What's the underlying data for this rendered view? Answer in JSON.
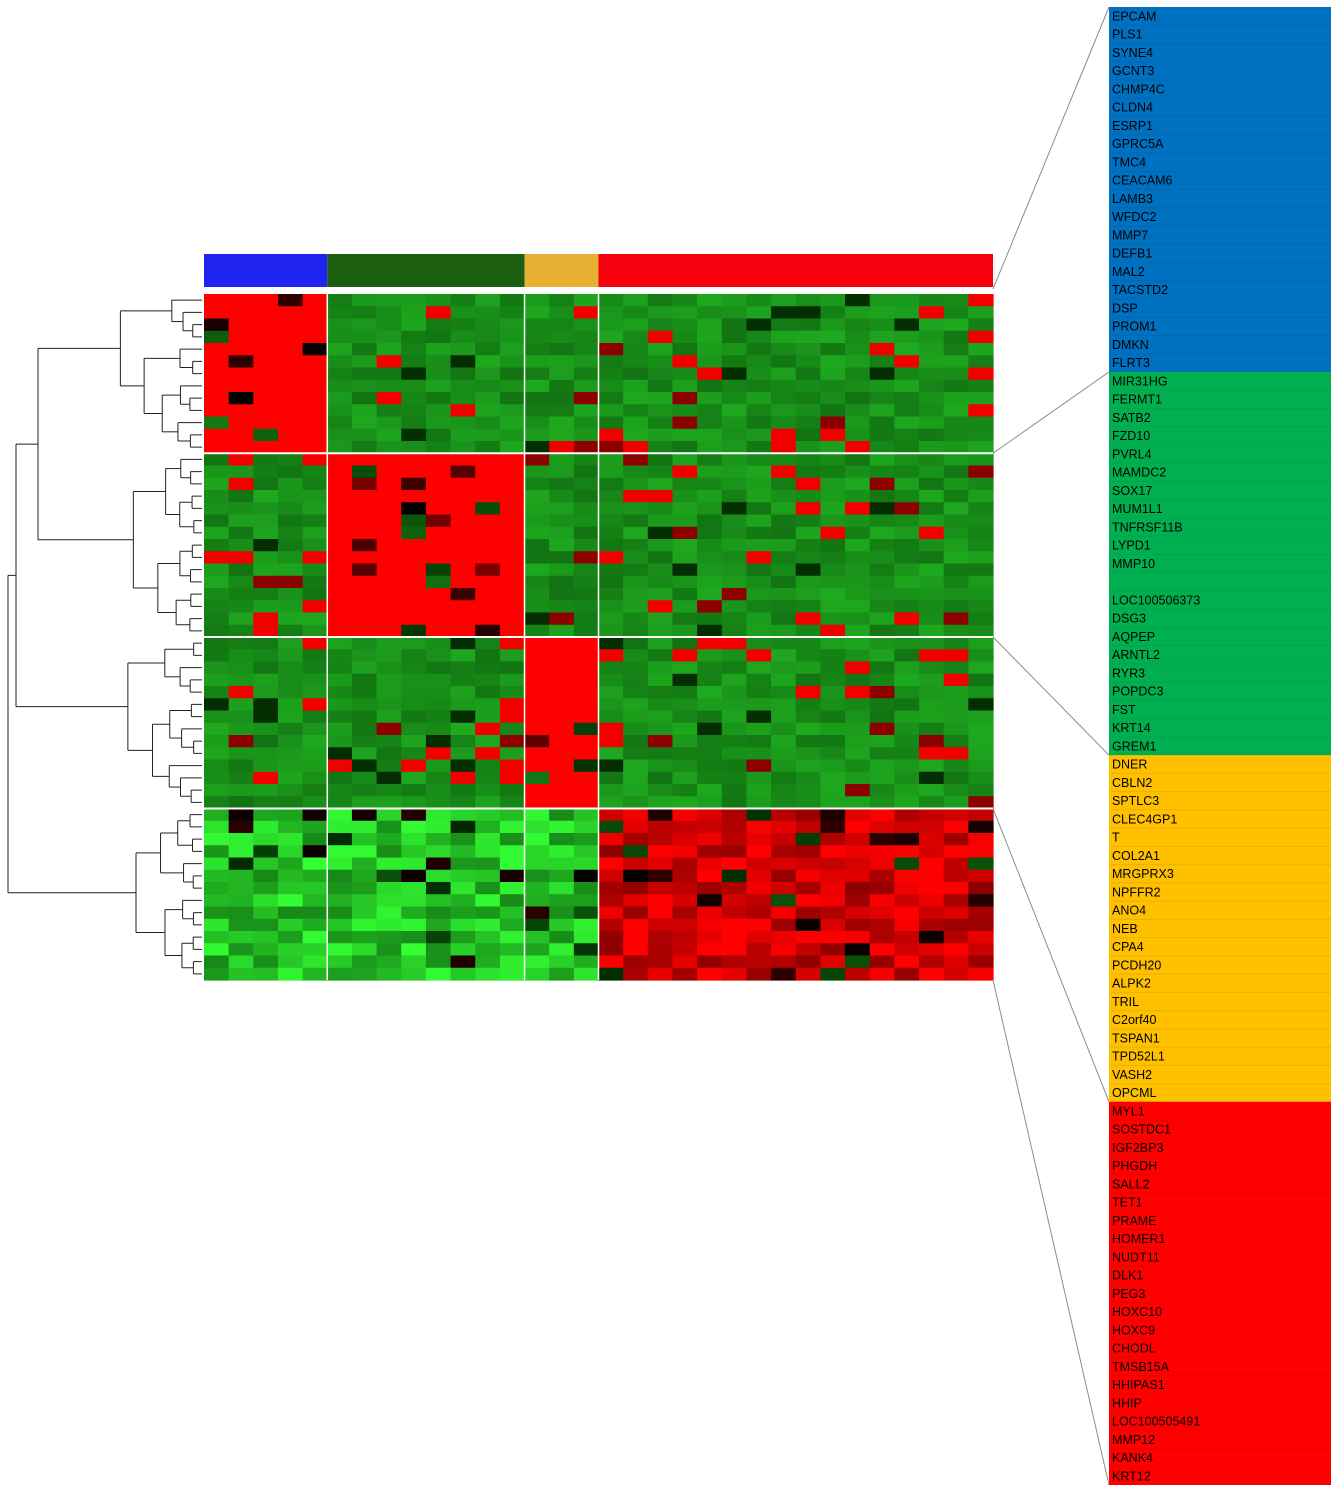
{
  "chart_data": {
    "type": "heatmap",
    "title": "",
    "xlabel": "",
    "ylabel": "",
    "colors": {
      "blue_group": "#1f24f0",
      "green_group": "#1b5e10",
      "orange_group": "#e8b032",
      "red_group": "#f5000c",
      "panel_blue": "#0070c0",
      "panel_green": "#00b050",
      "panel_orange": "#ffc000",
      "panel_red": "#ff0000",
      "high": "#ff0000",
      "mid": "#000000",
      "low": "#33ff33"
    },
    "sample_groups": [
      {
        "name": "",
        "color": "#1f24f0",
        "n_samples": 5
      },
      {
        "name": "",
        "color": "#1b5e10",
        "n_samples": 8
      },
      {
        "name": "",
        "color": "#e8b032",
        "n_samples": 3
      },
      {
        "name": "",
        "color": "#f5000c",
        "n_samples": 16
      }
    ],
    "gene_clusters": [
      {
        "color": "#0070c0",
        "heatmap_rows": 13,
        "upregulated_group": 0,
        "genes": [
          "EPCAM",
          "PLS1",
          "SYNE4",
          "GCNT3",
          "CHMP4C",
          "CLDN4",
          "ESRP1",
          "GPRC5A",
          "TMC4",
          "CEACAM6",
          "LAMB3",
          "WFDC2",
          "MMP7",
          "DEFB1",
          "MAL2",
          "TACSTD2",
          "DSP",
          "PROM1",
          "DMKN",
          "FLRT3"
        ]
      },
      {
        "color": "#00b050",
        "heatmap_rows": 15,
        "upregulated_group": 1,
        "genes": [
          "MIR31HG",
          "FERMT1",
          "SATB2",
          "FZD10",
          "PVRL4",
          "MAMDC2",
          "SOX17",
          "MUM1L1",
          "TNFRSF11B",
          "LYPD1",
          "MMP10",
          "",
          "LOC100506373",
          "DSG3",
          "AQPEP",
          "ARNTL2",
          "RYR3",
          "POPDC3",
          "FST",
          "KRT14",
          "GREM1"
        ]
      },
      {
        "color": "#ffc000",
        "heatmap_rows": 14,
        "upregulated_group": 2,
        "genes": [
          "DNER",
          "CBLN2",
          "SPTLC3",
          "CLEC4GP1",
          "T",
          "COL2A1",
          "MRGPRX3",
          "NPFFR2",
          "ANO4",
          "NEB",
          "CPA4",
          "PCDH20",
          "ALPK2",
          "TRIL",
          "C2orf40",
          "TSPAN1",
          "TPD52L1",
          "VASH2",
          "OPCML"
        ]
      },
      {
        "color": "#ff0000",
        "heatmap_rows": 14,
        "upregulated_group": 3,
        "genes": [
          "MYL1",
          "SOSTDC1",
          "IGF2BP3",
          "PHGDH",
          "SALL2",
          "TET1",
          "PRAME",
          "HOMER1",
          "NUDT11",
          "DLK1",
          "PEG3",
          "HOXC10",
          "HOXC9",
          "CHODL",
          "TMSB15A",
          "HHIPAS1",
          "HHIP",
          "LOC100505491",
          "MMP12",
          "KANK4",
          "KRT12"
        ]
      }
    ]
  }
}
